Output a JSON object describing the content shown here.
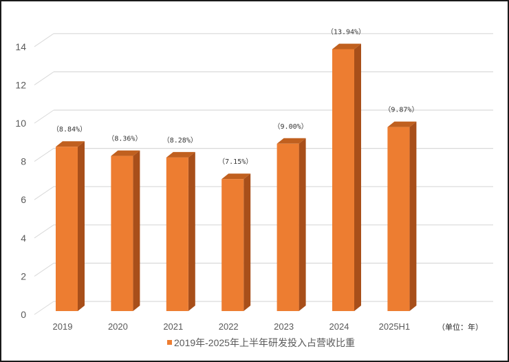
{
  "chart_data": {
    "type": "bar",
    "style": "3d-column",
    "title": "",
    "xlabel": "",
    "ylabel": "",
    "categories": [
      "2019",
      "2020",
      "2021",
      "2022",
      "2023",
      "2024",
      "2025H1"
    ],
    "series": [
      {
        "name": "2019年-2025年上半年研发投入占营收比重",
        "values": [
          8.84,
          8.36,
          8.28,
          7.15,
          9.0,
          13.94,
          9.87
        ],
        "data_labels": [
          "（8.84%）",
          "（8.36%）",
          "（8.28%）",
          "（7.15%）",
          "（9.00%）",
          "（13.94%）",
          "（9.87%）"
        ],
        "color": "#ED7D31",
        "side_color": "#A84F1A",
        "top_color": "#C0601F"
      }
    ],
    "ylim": [
      0,
      15
    ],
    "yticks": [
      "0",
      "2",
      "4",
      "6",
      "8",
      "10",
      "12",
      "14"
    ],
    "grid": true,
    "legend_position": "bottom",
    "annotations": [
      "（单位：年）"
    ]
  },
  "legend": {
    "label": "2019年-2025年上半年研发投入占营收比重",
    "swatch_color": "#ED7D31"
  },
  "unit_note": "（单位：年）"
}
